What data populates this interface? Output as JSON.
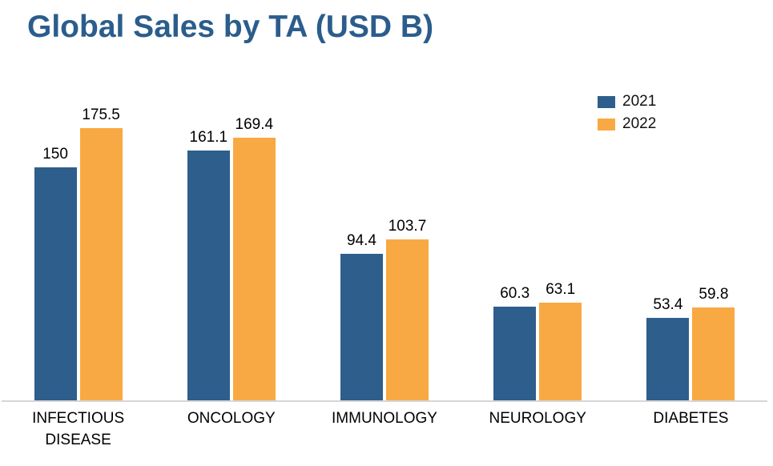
{
  "page": {
    "background": "#FFFFFF"
  },
  "chart_data": {
    "type": "bar",
    "title": "Global Sales by TA (USD B)",
    "title_color": "#2B5D8C",
    "categories": [
      "INFECTIOUS DISEASE",
      "ONCOLOGY",
      "IMMUNOLOGY",
      "NEUROLOGY",
      "DIABETES"
    ],
    "series": [
      {
        "name": "2021",
        "color": "#2E5E8C",
        "values": [
          150,
          161.1,
          94.4,
          60.3,
          53.4
        ],
        "labels": [
          "150",
          "161.1",
          "94.4",
          "60.3",
          "53.4"
        ]
      },
      {
        "name": "2022",
        "color": "#F9A943",
        "values": [
          175.5,
          169.4,
          103.7,
          63.1,
          59.8
        ],
        "labels": [
          "175.5",
          "169.4",
          "103.7",
          "63.1",
          "59.8"
        ]
      }
    ],
    "xlabel": "",
    "ylabel": "",
    "ylim": [
      0,
      180
    ],
    "grid": false,
    "data_labels": true,
    "legend_position": "top-right",
    "axis_line_color": "#D6D6D6"
  }
}
